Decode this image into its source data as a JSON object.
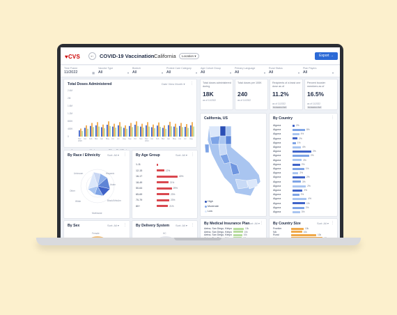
{
  "header": {
    "logo": "CVS",
    "title": "COVID-19 Vaccination",
    "sep": "-",
    "state": "California",
    "location_btn": "Location",
    "export": "Export"
  },
  "filters": [
    {
      "label": "Time Frame",
      "value": "11/2022"
    },
    {
      "label": "Vaccine Type",
      "value": "All"
    },
    {
      "label": "Biotech",
      "value": "All"
    },
    {
      "label": "Protect Care Category",
      "value": "All"
    },
    {
      "label": "Age Cohort Group",
      "value": "All"
    },
    {
      "label": "Primary Language",
      "value": "All"
    },
    {
      "label": "Rural Status",
      "value": "All"
    },
    {
      "label": "Plan Payers",
      "value": "All"
    }
  ],
  "doses": {
    "title": "Total Doses Administered",
    "view_label": "Date View",
    "view_value": "Month",
    "legend": [
      "Janssen",
      "Moderna",
      "Pfizer-BioNTech"
    ],
    "colors": [
      "#3f63c8",
      "#f0a94a",
      "#b7dc9f"
    ],
    "y_ticks": [
      "2.4M",
      "2M",
      "1.6M",
      "1.2M",
      "800K",
      "400K",
      "0"
    ],
    "x_labels": [
      "Dec 2020",
      "Jan",
      "Feb",
      "Mar",
      "Apr",
      "May",
      "Jun",
      "Jul",
      "Aug",
      "Sep",
      "Oct",
      "Nov",
      "Dec 2021",
      "Jan",
      "Feb",
      "Mar",
      "Apr",
      "May",
      "Jun",
      "Jul",
      "Aug"
    ]
  },
  "kpis": [
    {
      "label": "Total doses administered during",
      "value": "18K",
      "sub": "as of 11/2022",
      "badge": ""
    },
    {
      "label": "Total doses per 100K",
      "value": "240",
      "sub": "as of 11/2022",
      "badge": ""
    },
    {
      "label": "Recipients of a least one dose as of",
      "value": "11.2%",
      "sub": "as of 11/2022",
      "badge": "Consumer Act"
    },
    {
      "label": "Percent booster members as of",
      "value": "16.5%",
      "sub": "as of 11/2022",
      "badge": "Consumer Act"
    }
  ],
  "map": {
    "title": "California, US",
    "legend": [
      "High",
      "Moderate",
      "Low"
    ]
  },
  "country": {
    "title": "By Country",
    "rows": [
      {
        "label": "Algona",
        "value": "2%",
        "frac": 0.05
      },
      {
        "label": "Algona",
        "value": "8%",
        "frac": 0.3
      },
      {
        "label": "Algona",
        "value": "4%",
        "frac": 0.16
      },
      {
        "label": "Algona",
        "value": "2%",
        "frac": 0.12
      },
      {
        "label": "Algona",
        "value": "1%",
        "frac": 0.08
      },
      {
        "label": "Algona",
        "value": "4%",
        "frac": 0.2
      },
      {
        "label": "Algona",
        "value": "2%",
        "frac": 0.45
      },
      {
        "label": "Algona",
        "value": "2%",
        "frac": 0.4
      },
      {
        "label": "Algona",
        "value": "3%",
        "frac": 0.22
      },
      {
        "label": "Algona",
        "value": "2%",
        "frac": 0.18
      },
      {
        "label": "Algona",
        "value": "1%",
        "frac": 0.28
      },
      {
        "label": "Algona",
        "value": "2%",
        "frac": 0.14
      },
      {
        "label": "Algona",
        "value": "2%",
        "frac": 0.3
      },
      {
        "label": "Algona",
        "value": "3%",
        "frac": 0.2
      },
      {
        "label": "Algona",
        "value": "2%",
        "frac": 0.32
      },
      {
        "label": "Algona",
        "value": "2%",
        "frac": 0.24
      },
      {
        "label": "Algona",
        "value": "2%",
        "frac": 0.16
      },
      {
        "label": "Algona",
        "value": "4%",
        "frac": 0.34
      },
      {
        "label": "Algona",
        "value": "1%",
        "frac": 0.3
      },
      {
        "label": "Algona",
        "value": "2%",
        "frac": 0.28
      },
      {
        "label": "Algona",
        "value": "3%",
        "frac": 0.18
      }
    ]
  },
  "race": {
    "title": "By Race / Ethnicity",
    "sort": "Sort: All",
    "labels": [
      "Unknown",
      "Hispanic",
      "Asian",
      "Other",
      "Black/AfricAm",
      "White",
      "Multiracial"
    ]
  },
  "age": {
    "title": "By Age Group",
    "sort": "Sort: All",
    "rows": [
      {
        "label": "1-11",
        "value": "",
        "frac": 0.04
      },
      {
        "label": "12-15",
        "value": "12%",
        "frac": 0.18
      },
      {
        "label": "16-17",
        "value": "40%",
        "frac": 0.5
      },
      {
        "label": "18-49",
        "value": "21%",
        "frac": 0.28
      },
      {
        "label": "50-64",
        "value": "29%",
        "frac": 0.36
      },
      {
        "label": "65-69",
        "value": "23%",
        "frac": 0.3
      },
      {
        "label": "70-79",
        "value": "23%",
        "frac": 0.3
      },
      {
        "label": "80+",
        "value": "21%",
        "frac": 0.27
      }
    ]
  },
  "sex": {
    "title": "By Sex",
    "sort": "Sort: All",
    "label": "Female"
  },
  "delivery": {
    "title": "By Delivery System",
    "sort": "Sort: All",
    "label": "HC"
  },
  "insurance": {
    "title": "By Medical Insurance Plan",
    "sort": "Sort: All",
    "rows": [
      {
        "label": "Aetna, San Diego, Kirkport",
        "value": "10k",
        "frac": 0.5
      },
      {
        "label": "Aetna, San Diego, Kirkport",
        "value": "10k",
        "frac": 0.45
      },
      {
        "label": "Aetna, San Diego, Kirkport",
        "value": "10k",
        "frac": 0.42
      },
      {
        "label": "Aetna, San Diego, Kirkport",
        "value": "10k",
        "frac": 0.4
      },
      {
        "label": "Aetna, San Diego, Kirkport",
        "value": "10k",
        "frac": 0.38
      }
    ]
  },
  "csize": {
    "title": "By Country Size",
    "sort": "Sort: All",
    "rows": [
      {
        "label": "Frontier",
        "value": "10k",
        "frac": 0.3
      },
      {
        "label": "NA",
        "value": "10k",
        "frac": 0.26
      },
      {
        "label": "Rural",
        "value": "10k",
        "frac": 0.6
      },
      {
        "label": "Urban",
        "value": "10k",
        "frac": 0.75
      }
    ]
  }
}
